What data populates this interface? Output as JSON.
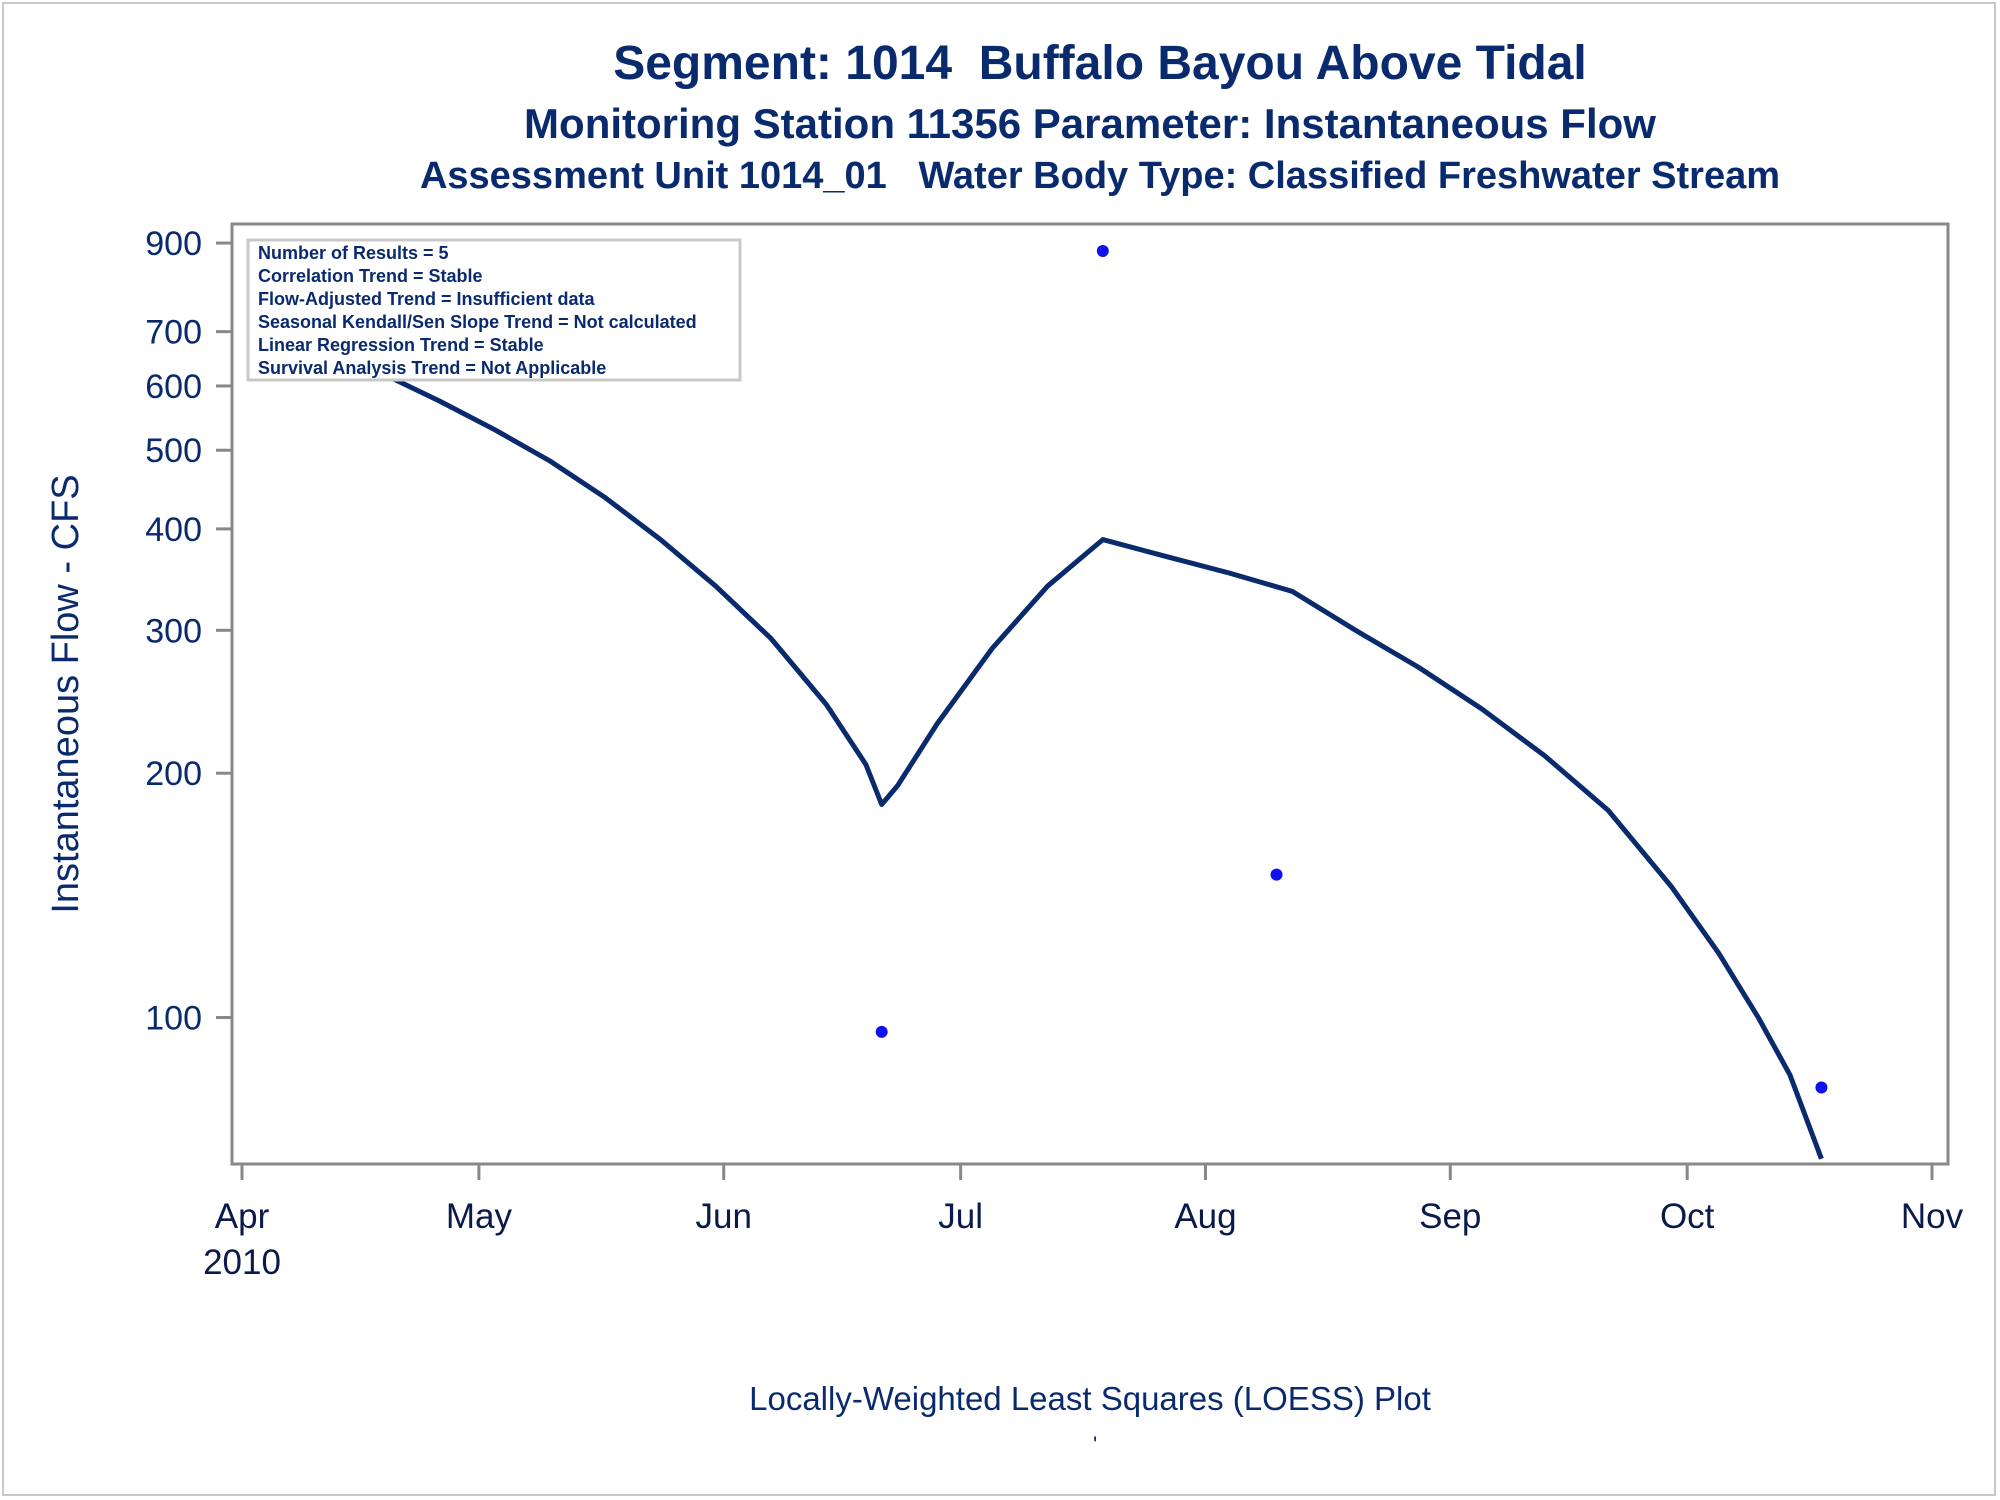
{
  "chart_data": {
    "type": "scatter",
    "title": "Segment: 1014  Buffalo Bayou Above Tidal",
    "subtitle": "Monitoring Station 11356 Parameter: Instantaneous Flow",
    "subtitle2": "Assessment Unit 1014_01   Water Body Type: Classified Freshwater Stream",
    "ylabel": "Instantaneous Flow - CFS",
    "footnote": "Locally-Weighted Least Squares (LOESS) Plot",
    "footnote_mark": "'",
    "yscale": "log",
    "ylim": [
      66,
      950
    ],
    "xlim": [
      "2010-04-01",
      "2010-11-01"
    ],
    "y_ticks": [
      100,
      200,
      300,
      400,
      500,
      600,
      700,
      900
    ],
    "y_tick_labels": [
      "100",
      "200",
      "300",
      "400",
      "500",
      "600",
      "700",
      "900"
    ],
    "x_ticks": [
      "2010-04-01",
      "2010-05-01",
      "2010-06-01",
      "2010-07-01",
      "2010-08-01",
      "2010-09-01",
      "2010-10-01",
      "2010-11-01"
    ],
    "x_tick_labels": [
      "Apr",
      "May",
      "Jun",
      "Jul",
      "Aug",
      "Sep",
      "Oct",
      "Nov"
    ],
    "x_tick_year_label": "2010",
    "series": [
      {
        "kind": "points",
        "color": "#1010ee",
        "points": [
          {
            "x": "2010-04-19",
            "y": 640
          },
          {
            "x": "2010-06-21",
            "y": 96
          },
          {
            "x": "2010-07-19",
            "y": 880
          },
          {
            "x": "2010-08-10",
            "y": 150
          },
          {
            "x": "2010-10-18",
            "y": 82
          }
        ]
      },
      {
        "kind": "line",
        "color": "#0a2a6e",
        "points": [
          {
            "x": "2010-04-19",
            "y": 620
          },
          {
            "x": "2010-04-26",
            "y": 575
          },
          {
            "x": "2010-05-03",
            "y": 530
          },
          {
            "x": "2010-05-10",
            "y": 485
          },
          {
            "x": "2010-05-17",
            "y": 437
          },
          {
            "x": "2010-05-24",
            "y": 388
          },
          {
            "x": "2010-05-31",
            "y": 340
          },
          {
            "x": "2010-06-07",
            "y": 293
          },
          {
            "x": "2010-06-14",
            "y": 243
          },
          {
            "x": "2010-06-19",
            "y": 205
          },
          {
            "x": "2010-06-21",
            "y": 183
          },
          {
            "x": "2010-06-23",
            "y": 193
          },
          {
            "x": "2010-06-28",
            "y": 230
          },
          {
            "x": "2010-07-05",
            "y": 285
          },
          {
            "x": "2010-07-12",
            "y": 340
          },
          {
            "x": "2010-07-19",
            "y": 388
          },
          {
            "x": "2010-07-27",
            "y": 370
          },
          {
            "x": "2010-08-04",
            "y": 353
          },
          {
            "x": "2010-08-12",
            "y": 335
          },
          {
            "x": "2010-08-20",
            "y": 300
          },
          {
            "x": "2010-08-28",
            "y": 270
          },
          {
            "x": "2010-09-05",
            "y": 240
          },
          {
            "x": "2010-09-13",
            "y": 210
          },
          {
            "x": "2010-09-21",
            "y": 180
          },
          {
            "x": "2010-09-29",
            "y": 145
          },
          {
            "x": "2010-10-05",
            "y": 120
          },
          {
            "x": "2010-10-10",
            "y": 100
          },
          {
            "x": "2010-10-14",
            "y": 85
          },
          {
            "x": "2010-10-18",
            "y": 67
          }
        ]
      }
    ],
    "info_box": {
      "placement": "top-left",
      "lines": [
        "Number of Results = 5",
        "Correlation Trend = Stable",
        "Flow-Adjusted Trend = Insufficient data",
        "Seasonal Kendall/Sen Slope Trend = Not calculated",
        "Linear Regression Trend = Stable",
        "Survival Analysis Trend = Not Applicable"
      ]
    },
    "colors": {
      "text": "#0a2a6e",
      "axis": "#888888",
      "box_border": "#c8c8c8"
    }
  }
}
